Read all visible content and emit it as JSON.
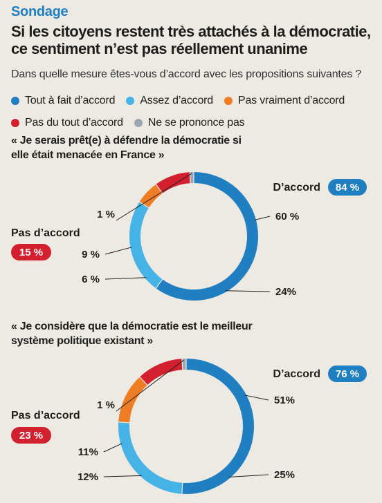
{
  "kicker": "Sondage",
  "headline": "Si les citoyens restent très attachés à la démocratie, ce sentiment n’est pas réellement unanime",
  "question": "Dans quelle mesure êtes-vous d’accord avec les propositions suivantes ?",
  "legend": {
    "row1": [
      {
        "label": "Tout à fait d’accord",
        "color": "#1f7fc1"
      },
      {
        "label": "Assez d’accord",
        "color": "#46b3e6"
      },
      {
        "label": "Pas vraiment d’accord",
        "color": "#ef7d26"
      }
    ],
    "row2": [
      {
        "label": "Pas du tout d’accord",
        "color": "#d2202f"
      },
      {
        "label": "Ne se prononce pas",
        "color": "#9aa7b1"
      }
    ]
  },
  "chart_data": [
    {
      "type": "pie",
      "title": "« Je serais prêt(e) à défendre la démocratie si elle était menacée en France »",
      "categories": [
        "Tout à fait d’accord",
        "Assez d’accord",
        "Pas vraiment d’accord",
        "Pas du tout d’accord",
        "Ne se prononce pas"
      ],
      "values": [
        60,
        24,
        6,
        9,
        1
      ],
      "labels": [
        "60 %",
        "24%",
        "6 %",
        "9 %",
        "1 %"
      ],
      "colors": [
        "#1f7fc1",
        "#46b3e6",
        "#ef7d26",
        "#d2202f",
        "#9aa7b1"
      ],
      "agree_label": "D’accord",
      "agree_value": "84 %",
      "disagree_label": "Pas d’accord",
      "disagree_value": "15 %"
    },
    {
      "type": "pie",
      "title": "« Je considère que la démocratie est le meilleur système politique existant »",
      "categories": [
        "Tout à fait d’accord",
        "Assez d’accord",
        "Pas vraiment d’accord",
        "Pas du tout d’accord",
        "Ne se prononce pas"
      ],
      "values": [
        51,
        25,
        12,
        11,
        1
      ],
      "labels": [
        "51%",
        "25%",
        "12%",
        "11%",
        "1 %"
      ],
      "colors": [
        "#1f7fc1",
        "#46b3e6",
        "#ef7d26",
        "#d2202f",
        "#9aa7b1"
      ],
      "agree_label": "D’accord",
      "agree_value": "76 %",
      "disagree_label": "Pas d’accord",
      "disagree_value": "23 %"
    }
  ]
}
